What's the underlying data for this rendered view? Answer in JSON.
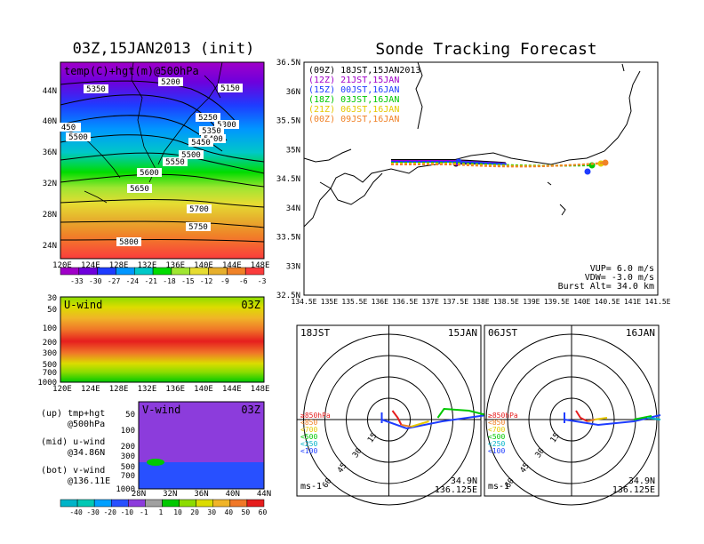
{
  "left_title": "03Z,15JAN2013 (init)",
  "right_title": "Sonde Tracking Forecast",
  "top_map": {
    "label": "temp(C)+hgt(m)@500hPa",
    "lon_ticks": [
      "120E",
      "124E",
      "128E",
      "132E",
      "136E",
      "140E",
      "144E",
      "148E"
    ],
    "lat_ticks": [
      "44N",
      "40N",
      "36N",
      "32N",
      "28N",
      "24N"
    ],
    "contour_labels": [
      "5350",
      "5200",
      "5150",
      "5250",
      "5300",
      "5350",
      "5400",
      "5450",
      "5500",
      "5550",
      "5600",
      "5650",
      "5700",
      "5750",
      "5800",
      "5500",
      "450"
    ],
    "colorbar": [
      "-33",
      "-30",
      "-27",
      "-24",
      "-21",
      "-18",
      "-15",
      "-12",
      "-9",
      "-6",
      "-3"
    ],
    "colorbar_colors": [
      "#a000c8",
      "#6e00dc",
      "#1e3cff",
      "#0096ff",
      "#00c8c8",
      "#00dc00",
      "#a0e632",
      "#e6dc32",
      "#e6af2d",
      "#f08228",
      "#fa3c3c"
    ]
  },
  "u_panel": {
    "label": "U-wind",
    "time": "03Z",
    "p_ticks": [
      "30",
      "50",
      "100",
      "200",
      "300",
      "500",
      "700",
      "1000"
    ],
    "lon_ticks": [
      "120E",
      "124E",
      "128E",
      "132E",
      "136E",
      "140E",
      "144E",
      "148E"
    ]
  },
  "v_panel": {
    "label": "V-wind",
    "time": "03Z",
    "p_ticks": [
      "50",
      "100",
      "200",
      "300",
      "500",
      "700",
      "1000"
    ],
    "lat_ticks": [
      "28N",
      "32N",
      "36N",
      "40N",
      "44N"
    ]
  },
  "notes": [
    {
      "a": "(up) tmp+hgt",
      "b": "@500hPa"
    },
    {
      "a": "(mid) u-wind",
      "b": "@34.86N"
    },
    {
      "a": "(bot) v-wind",
      "b": "@136.11E"
    }
  ],
  "wind_colorbar": {
    "labels": [
      "-40",
      "-30",
      "-20",
      "-10",
      "-1",
      "1",
      "10",
      "20",
      "30",
      "40",
      "50",
      "60"
    ],
    "colors": [
      "#00b4c8",
      "#00c8b4",
      "#00a0ff",
      "#2850ff",
      "#8c3cdc",
      "#a0a0a0",
      "#00c800",
      "#8cdc00",
      "#dcdc00",
      "#f0b428",
      "#f07828",
      "#e61e1e"
    ]
  },
  "track_map": {
    "legend": [
      {
        "text": "(09Z) 18JST,15JAN2013",
        "color": "#000000"
      },
      {
        "text": "(12Z) 21JST,15JAN",
        "color": "#a000c8"
      },
      {
        "text": "(15Z) 00JST,16JAN",
        "color": "#1e3cff"
      },
      {
        "text": "(18Z) 03JST,16JAN",
        "color": "#00c800"
      },
      {
        "text": "(21Z) 06JST,16JAN",
        "color": "#e6c800"
      },
      {
        "text": "(00Z) 09JST,16JAN",
        "color": "#f08228"
      }
    ],
    "lon_ticks": [
      "134.5E",
      "135E",
      "135.5E",
      "136E",
      "136.5E",
      "137E",
      "137.5E",
      "138E",
      "138.5E",
      "139E",
      "139.5E",
      "140E",
      "140.5E",
      "141E",
      "141.5E"
    ],
    "lat_ticks": [
      "36.5N",
      "36N",
      "35.5N",
      "35N",
      "34.5N",
      "34N",
      "33.5N",
      "33N",
      "32.5N"
    ],
    "params": [
      "VUP= 6.0 m/s",
      "VDW= -3.0 m/s",
      "Burst Alt= 34.0 km"
    ]
  },
  "hodographs": [
    {
      "time": "18JST",
      "date": "15JAN",
      "lat": "34.9N",
      "lon": "136.125E",
      "unit": "ms-1",
      "ring_labels": [
        "15",
        "30",
        "45",
        "60"
      ],
      "levels": [
        {
          "t": "≥850hPa",
          "c": "#e61e1e"
        },
        {
          "t": "<850",
          "c": "#f08228"
        },
        {
          "t": "<700",
          "c": "#e6c800"
        },
        {
          "t": "<500",
          "c": "#00c800"
        },
        {
          "t": "<250",
          "c": "#00b4c8"
        },
        {
          "t": "<100",
          "c": "#1e3cff"
        }
      ]
    },
    {
      "time": "06JST",
      "date": "16JAN",
      "lat": "34.9N",
      "lon": "136.125E",
      "unit": "ms-1",
      "ring_labels": [
        "15",
        "30",
        "45",
        "60"
      ],
      "levels": [
        {
          "t": "≥850hPa",
          "c": "#e61e1e"
        },
        {
          "t": "<850",
          "c": "#f08228"
        },
        {
          "t": "<700",
          "c": "#e6c800"
        },
        {
          "t": "<500",
          "c": "#00c800"
        },
        {
          "t": "<250",
          "c": "#00b4c8"
        },
        {
          "t": "<100",
          "c": "#1e3cff"
        }
      ]
    }
  ]
}
